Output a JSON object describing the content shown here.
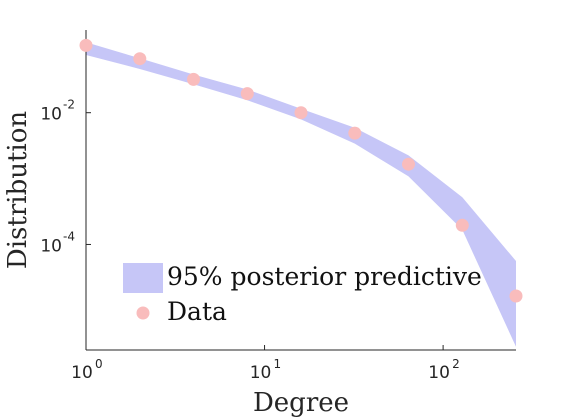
{
  "chart_data": {
    "type": "scatter",
    "title": "",
    "xlabel": "Degree",
    "ylabel": "Distribution",
    "x_scale": "log",
    "y_scale": "log",
    "xlim": [
      1,
      256
    ],
    "ylim": [
      2.5e-06,
      0.18
    ],
    "x_ticks": [
      {
        "base": "10",
        "exp": "0",
        "value": 1
      },
      {
        "base": "10",
        "exp": "1",
        "value": 10
      },
      {
        "base": "10",
        "exp": "2",
        "value": 100
      }
    ],
    "y_ticks": [
      {
        "base": "10",
        "exp": "-2",
        "value": 0.01
      },
      {
        "base": "10",
        "exp": "-4",
        "value": 0.0001
      }
    ],
    "band": {
      "name": "95% posterior predictive",
      "color": "#c6c6f7",
      "x": [
        1,
        2,
        4,
        8,
        16,
        32,
        64,
        128,
        256
      ],
      "lower": [
        0.075,
        0.046,
        0.027,
        0.0155,
        0.0079,
        0.0034,
        0.00108,
        0.000167,
        2.8e-06
      ],
      "upper": [
        0.117,
        0.067,
        0.038,
        0.0225,
        0.0115,
        0.0059,
        0.00225,
        0.00052,
        5.6e-05
      ]
    },
    "series": [
      {
        "name": "Data",
        "color": "#f9bcbc",
        "x": [
          1,
          2,
          4,
          8,
          16,
          32,
          64,
          128,
          256
        ],
        "y": [
          0.105,
          0.066,
          0.032,
          0.0195,
          0.01,
          0.0049,
          0.00165,
          0.000195,
          1.65e-05
        ]
      }
    ],
    "legend": {
      "position": "bottom-left",
      "entries": [
        "95% posterior predictive",
        "Data"
      ]
    },
    "grid": false
  }
}
